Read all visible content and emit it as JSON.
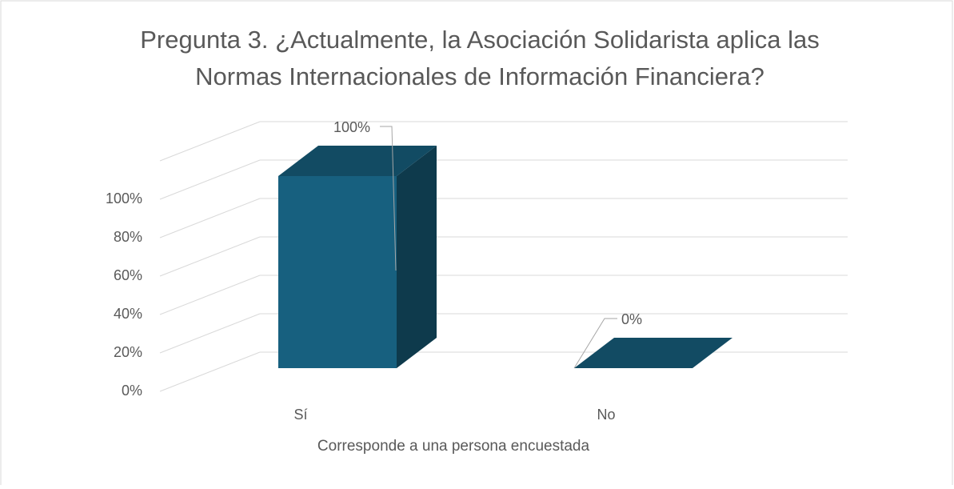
{
  "chart_data": {
    "type": "bar3d",
    "title": [
      "Pregunta 3. ¿Actualmente, la Asociación Solidarista aplica las",
      "Normas Internacionales de Información Financiera?"
    ],
    "x_label": "Corresponde a una persona encuestada",
    "categories": [
      "Sí",
      "No"
    ],
    "values": [
      100,
      0
    ],
    "value_labels": [
      "100%",
      "0%"
    ],
    "color": "#17607f",
    "ylim": [
      0,
      120
    ],
    "yticks": [
      {
        "value": 0,
        "label": "0%"
      },
      {
        "value": 20,
        "label": "20%"
      },
      {
        "value": 40,
        "label": "40%"
      },
      {
        "value": 60,
        "label": "60%"
      },
      {
        "value": 80,
        "label": "80%"
      },
      {
        "value": 100,
        "label": "100%"
      }
    ],
    "grid": true
  }
}
